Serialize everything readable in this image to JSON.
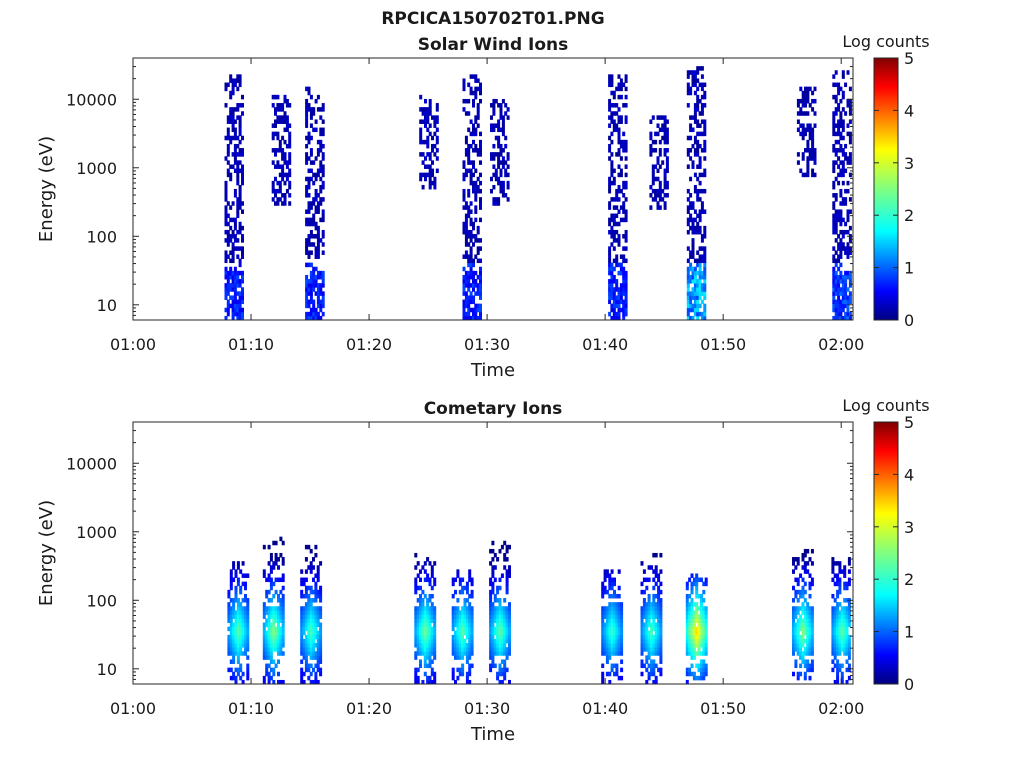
{
  "figure_title": "RPCICA150702T01.PNG",
  "colorbar_unit": "Log counts",
  "colorscale": "jet",
  "background_color": "#ffffff",
  "chart_data": [
    {
      "type": "heatmap",
      "title": "Solar Wind Ions",
      "xlabel": "Time",
      "ylabel": "Energy (eV)",
      "y_scale": "log",
      "xlim": [
        "01:00",
        "02:01"
      ],
      "ylim": [
        6,
        40000
      ],
      "x_ticks": [
        "01:00",
        "01:10",
        "01:20",
        "01:30",
        "01:40",
        "01:50",
        "02:00"
      ],
      "y_ticks": [
        10,
        100,
        1000,
        10000
      ],
      "y_tick_labels": [
        "10",
        "100",
        "1000",
        "10000"
      ],
      "colorbar": {
        "label": "Log counts",
        "range": [
          0,
          5
        ],
        "ticks": [
          "0",
          "1",
          "2",
          "3",
          "4",
          "5"
        ]
      },
      "bursts": [
        {
          "time": "01:08:30",
          "energy_range": [
            6,
            22000
          ],
          "peak_log_counts": 1.0
        },
        {
          "time": "01:12:30",
          "energy_range": [
            300,
            12000
          ],
          "peak_log_counts": 0.3
        },
        {
          "time": "01:15:20",
          "energy_range": [
            6,
            15000
          ],
          "peak_log_counts": 1.0
        },
        {
          "time": "01:25:00",
          "energy_range": [
            500,
            12000
          ],
          "peak_log_counts": 0.3
        },
        {
          "time": "01:28:40",
          "energy_range": [
            6,
            25000
          ],
          "peak_log_counts": 1.0
        },
        {
          "time": "01:31:00",
          "energy_range": [
            300,
            10000
          ],
          "peak_log_counts": 0.3
        },
        {
          "time": "01:41:00",
          "energy_range": [
            6,
            22000
          ],
          "peak_log_counts": 1.0
        },
        {
          "time": "01:44:30",
          "energy_range": [
            250,
            6000
          ],
          "peak_log_counts": 0.3
        },
        {
          "time": "01:47:40",
          "energy_range": [
            6,
            30000
          ],
          "peak_log_counts": 1.8
        },
        {
          "time": "01:57:00",
          "energy_range": [
            700,
            15000
          ],
          "peak_log_counts": 0.3
        },
        {
          "time": "02:00:00",
          "energy_range": [
            6,
            25000
          ],
          "peak_log_counts": 1.2
        }
      ]
    },
    {
      "type": "heatmap",
      "title": "Cometary Ions",
      "xlabel": "Time",
      "ylabel": "Energy (eV)",
      "y_scale": "log",
      "xlim": [
        "01:00",
        "02:01"
      ],
      "ylim": [
        6,
        40000
      ],
      "x_ticks": [
        "01:00",
        "01:10",
        "01:20",
        "01:30",
        "01:40",
        "01:50",
        "02:00"
      ],
      "y_ticks": [
        10,
        100,
        1000,
        10000
      ],
      "y_tick_labels": [
        "10",
        "100",
        "1000",
        "10000"
      ],
      "colorbar": {
        "label": "Log counts",
        "range": [
          0,
          5
        ],
        "ticks": [
          "0",
          "1",
          "2",
          "3",
          "4",
          "5"
        ]
      },
      "bursts": [
        {
          "time": "01:08:50",
          "energy_range": [
            6,
            350
          ],
          "peak_log_counts": 2.4
        },
        {
          "time": "01:11:50",
          "energy_range": [
            6,
            900
          ],
          "peak_log_counts": 2.6
        },
        {
          "time": "01:15:00",
          "energy_range": [
            6,
            650
          ],
          "peak_log_counts": 2.3
        },
        {
          "time": "01:24:40",
          "energy_range": [
            6,
            500
          ],
          "peak_log_counts": 2.5
        },
        {
          "time": "01:27:50",
          "energy_range": [
            6,
            300
          ],
          "peak_log_counts": 2.4
        },
        {
          "time": "01:31:00",
          "energy_range": [
            6,
            750
          ],
          "peak_log_counts": 2.4
        },
        {
          "time": "01:40:30",
          "energy_range": [
            6,
            300
          ],
          "peak_log_counts": 2.2
        },
        {
          "time": "01:43:50",
          "energy_range": [
            6,
            500
          ],
          "peak_log_counts": 2.3
        },
        {
          "time": "01:47:40",
          "energy_range": [
            6,
            250
          ],
          "peak_log_counts": 3.4
        },
        {
          "time": "01:56:40",
          "energy_range": [
            6,
            600
          ],
          "peak_log_counts": 2.6
        },
        {
          "time": "02:00:00",
          "energy_range": [
            6,
            450
          ],
          "peak_log_counts": 2.4
        }
      ]
    }
  ]
}
